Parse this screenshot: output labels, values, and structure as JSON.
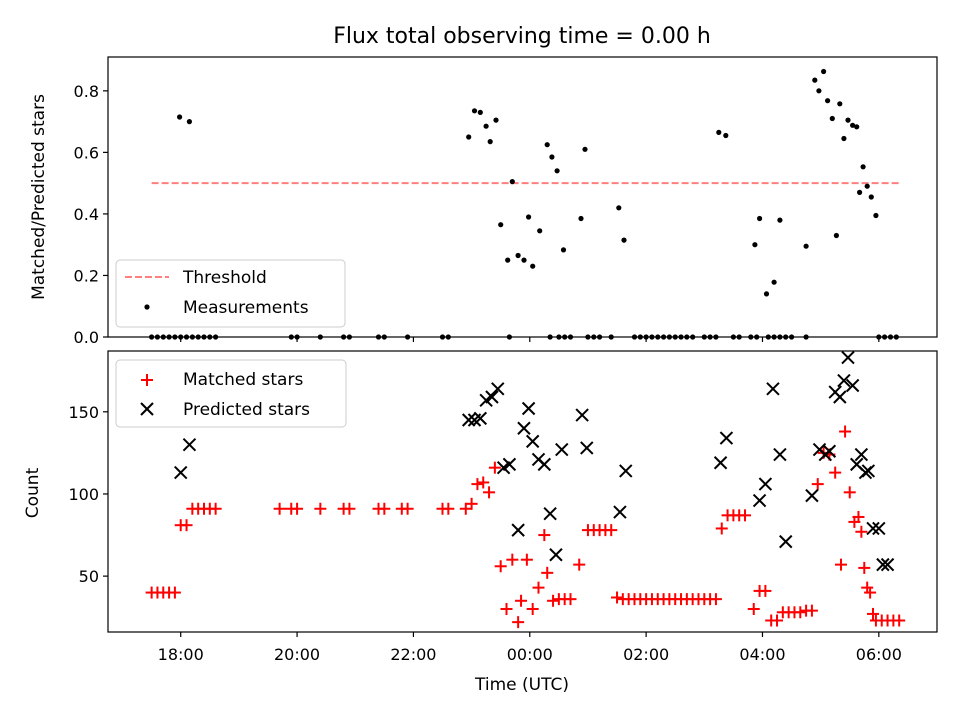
{
  "figure": {
    "title": "Flux total observing time = 0.00 h",
    "xlabel": "Time (UTC)",
    "x_tick_labels": [
      "18:00",
      "20:00",
      "22:00",
      "00:00",
      "02:00",
      "04:00",
      "06:00"
    ]
  },
  "chart_data": [
    {
      "type": "scatter",
      "ylabel": "Matched/Predicted stars",
      "xlim_hours": [
        16.75,
        31.0
      ],
      "ylim": [
        0,
        0.91
      ],
      "y_ticks": [
        "0.0",
        "0.2",
        "0.4",
        "0.6",
        "0.8"
      ],
      "y_tick_values": [
        0,
        0.2,
        0.4,
        0.6,
        0.8
      ],
      "legend_position": "lower-left",
      "threshold": {
        "name": "Threshold",
        "value": 0.5,
        "x_range": [
          17.5,
          30.35
        ],
        "color": "#ff7f7f"
      },
      "series": [
        {
          "name": "Measurements",
          "color": "#000000",
          "points": [
            [
              17.5,
              0
            ],
            [
              17.6,
              0
            ],
            [
              17.7,
              0
            ],
            [
              17.8,
              0
            ],
            [
              17.9,
              0
            ],
            [
              18.0,
              0
            ],
            [
              18.1,
              0
            ],
            [
              18.2,
              0
            ],
            [
              18.3,
              0
            ],
            [
              18.4,
              0
            ],
            [
              18.5,
              0
            ],
            [
              18.6,
              0
            ],
            [
              19.9,
              0
            ],
            [
              20.0,
              0
            ],
            [
              20.4,
              0
            ],
            [
              20.8,
              0
            ],
            [
              20.9,
              0
            ],
            [
              21.4,
              0
            ],
            [
              21.5,
              0
            ],
            [
              21.9,
              0
            ],
            [
              22.5,
              0
            ],
            [
              22.6,
              0
            ],
            [
              23.65,
              0
            ],
            [
              24.35,
              0
            ],
            [
              24.5,
              0
            ],
            [
              24.6,
              0
            ],
            [
              24.7,
              0
            ],
            [
              25.0,
              0
            ],
            [
              25.1,
              0
            ],
            [
              25.2,
              0
            ],
            [
              25.4,
              0
            ],
            [
              25.8,
              0
            ],
            [
              25.9,
              0
            ],
            [
              26.0,
              0
            ],
            [
              26.1,
              0
            ],
            [
              26.2,
              0
            ],
            [
              26.3,
              0
            ],
            [
              26.4,
              0
            ],
            [
              26.5,
              0
            ],
            [
              26.6,
              0
            ],
            [
              26.7,
              0
            ],
            [
              26.8,
              0
            ],
            [
              27.0,
              0
            ],
            [
              27.1,
              0
            ],
            [
              27.2,
              0
            ],
            [
              27.5,
              0
            ],
            [
              27.6,
              0
            ],
            [
              27.8,
              0
            ],
            [
              27.9,
              0
            ],
            [
              28.1,
              0
            ],
            [
              28.2,
              0
            ],
            [
              28.3,
              0
            ],
            [
              28.4,
              0
            ],
            [
              28.5,
              0
            ],
            [
              28.75,
              0
            ],
            [
              30.0,
              0
            ],
            [
              30.1,
              0
            ],
            [
              30.2,
              0
            ],
            [
              30.3,
              0
            ],
            [
              17.98,
              0.715
            ],
            [
              18.15,
              0.7
            ],
            [
              22.95,
              0.65
            ],
            [
              23.05,
              0.735
            ],
            [
              23.15,
              0.73
            ],
            [
              23.25,
              0.685
            ],
            [
              23.32,
              0.635
            ],
            [
              23.42,
              0.705
            ],
            [
              23.5,
              0.365
            ],
            [
              23.62,
              0.25
            ],
            [
              23.7,
              0.505
            ],
            [
              23.8,
              0.265
            ],
            [
              23.9,
              0.25
            ],
            [
              23.98,
              0.39
            ],
            [
              24.05,
              0.23
            ],
            [
              24.17,
              0.345
            ],
            [
              24.3,
              0.625
            ],
            [
              24.38,
              0.585
            ],
            [
              24.47,
              0.54
            ],
            [
              24.58,
              0.283
            ],
            [
              24.88,
              0.385
            ],
            [
              24.95,
              0.61
            ],
            [
              25.53,
              0.42
            ],
            [
              25.62,
              0.315
            ],
            [
              27.25,
              0.665
            ],
            [
              27.37,
              0.655
            ],
            [
              27.87,
              0.3
            ],
            [
              27.95,
              0.385
            ],
            [
              28.07,
              0.14
            ],
            [
              28.2,
              0.178
            ],
            [
              28.3,
              0.38
            ],
            [
              28.75,
              0.295
            ],
            [
              28.9,
              0.835
            ],
            [
              28.97,
              0.8
            ],
            [
              29.05,
              0.863
            ],
            [
              29.12,
              0.768
            ],
            [
              29.2,
              0.71
            ],
            [
              29.27,
              0.33
            ],
            [
              29.33,
              0.758
            ],
            [
              29.4,
              0.645
            ],
            [
              29.47,
              0.705
            ],
            [
              29.55,
              0.688
            ],
            [
              29.62,
              0.683
            ],
            [
              29.67,
              0.47
            ],
            [
              29.73,
              0.553
            ],
            [
              29.8,
              0.49
            ],
            [
              29.87,
              0.455
            ],
            [
              29.95,
              0.395
            ]
          ]
        }
      ]
    },
    {
      "type": "scatter",
      "ylabel": "Count",
      "xlim_hours": [
        16.75,
        31.0
      ],
      "ylim": [
        16,
        187
      ],
      "y_ticks": [
        "50",
        "100",
        "150"
      ],
      "y_tick_values": [
        50,
        100,
        150
      ],
      "legend_position": "upper-left",
      "series": [
        {
          "name": "Matched stars",
          "color": "#ff0000",
          "marker": "plus",
          "points": [
            [
              17.5,
              40
            ],
            [
              17.6,
              40
            ],
            [
              17.7,
              40
            ],
            [
              17.8,
              40
            ],
            [
              17.9,
              40
            ],
            [
              18.0,
              81
            ],
            [
              18.1,
              81
            ],
            [
              18.2,
              91
            ],
            [
              18.3,
              91
            ],
            [
              18.4,
              91
            ],
            [
              18.5,
              91
            ],
            [
              18.6,
              91
            ],
            [
              19.7,
              91
            ],
            [
              19.9,
              91
            ],
            [
              20.0,
              91
            ],
            [
              20.4,
              91
            ],
            [
              20.8,
              91
            ],
            [
              20.9,
              91
            ],
            [
              21.4,
              91
            ],
            [
              21.5,
              91
            ],
            [
              21.8,
              91
            ],
            [
              21.9,
              91
            ],
            [
              22.5,
              91
            ],
            [
              22.6,
              91
            ],
            [
              22.9,
              91
            ],
            [
              23.0,
              94
            ],
            [
              23.1,
              106
            ],
            [
              23.2,
              107
            ],
            [
              23.3,
              101
            ],
            [
              23.4,
              116
            ],
            [
              23.5,
              56
            ],
            [
              23.6,
              30
            ],
            [
              23.7,
              60
            ],
            [
              23.8,
              22
            ],
            [
              23.85,
              35
            ],
            [
              23.95,
              60
            ],
            [
              24.05,
              30
            ],
            [
              24.15,
              43
            ],
            [
              24.25,
              75
            ],
            [
              24.3,
              52
            ],
            [
              24.4,
              35
            ],
            [
              24.5,
              36
            ],
            [
              24.6,
              36
            ],
            [
              24.7,
              36
            ],
            [
              24.85,
              57
            ],
            [
              25.0,
              78
            ],
            [
              25.1,
              78
            ],
            [
              25.2,
              78
            ],
            [
              25.3,
              78
            ],
            [
              25.4,
              78
            ],
            [
              25.5,
              37
            ],
            [
              25.6,
              36
            ],
            [
              25.7,
              36
            ],
            [
              25.8,
              36
            ],
            [
              25.9,
              36
            ],
            [
              26.0,
              36
            ],
            [
              26.1,
              36
            ],
            [
              26.2,
              36
            ],
            [
              26.3,
              36
            ],
            [
              26.4,
              36
            ],
            [
              26.5,
              36
            ],
            [
              26.6,
              36
            ],
            [
              26.7,
              36
            ],
            [
              26.8,
              36
            ],
            [
              26.9,
              36
            ],
            [
              27.0,
              36
            ],
            [
              27.1,
              36
            ],
            [
              27.2,
              36
            ],
            [
              27.3,
              79
            ],
            [
              27.4,
              87
            ],
            [
              27.5,
              87
            ],
            [
              27.6,
              87
            ],
            [
              27.7,
              87
            ],
            [
              27.85,
              30
            ],
            [
              27.95,
              41
            ],
            [
              28.05,
              41
            ],
            [
              28.15,
              23
            ],
            [
              28.25,
              23
            ],
            [
              28.35,
              28
            ],
            [
              28.45,
              28
            ],
            [
              28.55,
              28
            ],
            [
              28.65,
              28
            ],
            [
              28.75,
              29
            ],
            [
              28.85,
              29
            ],
            [
              28.95,
              106
            ],
            [
              29.05,
              125
            ],
            [
              29.15,
              124
            ],
            [
              29.25,
              113
            ],
            [
              29.35,
              57
            ],
            [
              29.42,
              138
            ],
            [
              29.5,
              101
            ],
            [
              29.58,
              83
            ],
            [
              29.65,
              86
            ],
            [
              29.7,
              77
            ],
            [
              29.75,
              55
            ],
            [
              29.8,
              43
            ],
            [
              29.85,
              40
            ],
            [
              29.9,
              27
            ],
            [
              29.95,
              23
            ],
            [
              30.05,
              23
            ],
            [
              30.15,
              23
            ],
            [
              30.25,
              23
            ],
            [
              30.35,
              23
            ]
          ]
        },
        {
          "name": "Predicted stars",
          "color": "#000000",
          "marker": "x",
          "points": [
            [
              18.0,
              113
            ],
            [
              18.15,
              130
            ],
            [
              22.95,
              145
            ],
            [
              23.05,
              145
            ],
            [
              23.15,
              146
            ],
            [
              23.25,
              157
            ],
            [
              23.35,
              159
            ],
            [
              23.45,
              164
            ],
            [
              23.55,
              116
            ],
            [
              23.65,
              118
            ],
            [
              23.8,
              78
            ],
            [
              23.9,
              140
            ],
            [
              23.98,
              152
            ],
            [
              24.05,
              132
            ],
            [
              24.15,
              121
            ],
            [
              24.25,
              118
            ],
            [
              24.35,
              88
            ],
            [
              24.45,
              63
            ],
            [
              24.55,
              127
            ],
            [
              24.9,
              148
            ],
            [
              24.98,
              128
            ],
            [
              25.55,
              89
            ],
            [
              25.65,
              114
            ],
            [
              27.28,
              119
            ],
            [
              27.38,
              134
            ],
            [
              27.95,
              96
            ],
            [
              28.05,
              106
            ],
            [
              28.18,
              164
            ],
            [
              28.3,
              124
            ],
            [
              28.4,
              71
            ],
            [
              28.85,
              99
            ],
            [
              28.98,
              127
            ],
            [
              29.08,
              124
            ],
            [
              29.15,
              126
            ],
            [
              29.25,
              162
            ],
            [
              29.33,
              159
            ],
            [
              29.4,
              169
            ],
            [
              29.47,
              183
            ],
            [
              29.55,
              166
            ],
            [
              29.62,
              118
            ],
            [
              29.7,
              124
            ],
            [
              29.77,
              113
            ],
            [
              29.82,
              114
            ],
            [
              29.9,
              79
            ],
            [
              30.0,
              79
            ],
            [
              30.07,
              57
            ],
            [
              30.15,
              57
            ]
          ]
        }
      ]
    }
  ]
}
